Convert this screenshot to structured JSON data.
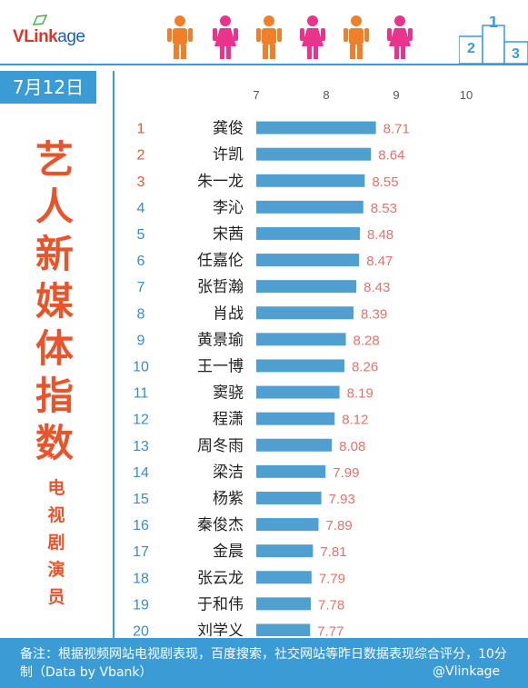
{
  "brand": {
    "logo_v": "V",
    "logo_link": "Link",
    "logo_age": "age"
  },
  "date": "7月12日",
  "title_chars": [
    "艺",
    "人",
    "新",
    "媒",
    "体",
    "指",
    "数"
  ],
  "star": "*",
  "subtitle_chars": [
    "电",
    "视",
    "剧",
    "演",
    "员"
  ],
  "footer": {
    "note": "备注：根据视频网站电视剧表现，百度搜索，社交网站等昨日数据表现综合评分，10分制（Data by Vbank）",
    "weibo": "@Vlinkage"
  },
  "podium_labels": [
    "2",
    "1",
    "3"
  ],
  "colors": {
    "bar": "#4f9fd1",
    "value_text": "#e8706a",
    "rank_text": "#e8542b",
    "rank_text_alt": "#3a8cc4",
    "accent_blue": "#3a9bd5",
    "male": "#f07f2a",
    "female": "#e8348c"
  },
  "chart_data": {
    "type": "bar",
    "orientation": "horizontal",
    "x_ticks": [
      "7",
      "8",
      "9",
      "10"
    ],
    "xlim": [
      7,
      10
    ],
    "ranks": [
      "1",
      "2",
      "3",
      "4",
      "5",
      "6",
      "7",
      "8",
      "9",
      "10",
      "11",
      "12",
      "13",
      "14",
      "15",
      "16",
      "17",
      "18",
      "19",
      "20"
    ],
    "categories": [
      "龚俊",
      "许凯",
      "朱一龙",
      "李沁",
      "宋茜",
      "任嘉伦",
      "张哲瀚",
      "肖战",
      "黄景瑜",
      "王一博",
      "窦骁",
      "程潇",
      "周冬雨",
      "梁洁",
      "杨紫",
      "秦俊杰",
      "金晨",
      "张云龙",
      "于和伟",
      "刘学义"
    ],
    "values": [
      8.71,
      8.64,
      8.55,
      8.53,
      8.48,
      8.47,
      8.43,
      8.39,
      8.28,
      8.26,
      8.19,
      8.12,
      8.08,
      7.99,
      7.93,
      7.89,
      7.81,
      7.79,
      7.78,
      7.77
    ],
    "value_labels": [
      "8.71",
      "8.64",
      "8.55",
      "8.53",
      "8.48",
      "8.47",
      "8.43",
      "8.39",
      "8.28",
      "8.26",
      "8.19",
      "8.12",
      "8.08",
      "7.99",
      "7.93",
      "7.89",
      "7.81",
      "7.79",
      "7.78",
      "7.77"
    ]
  }
}
